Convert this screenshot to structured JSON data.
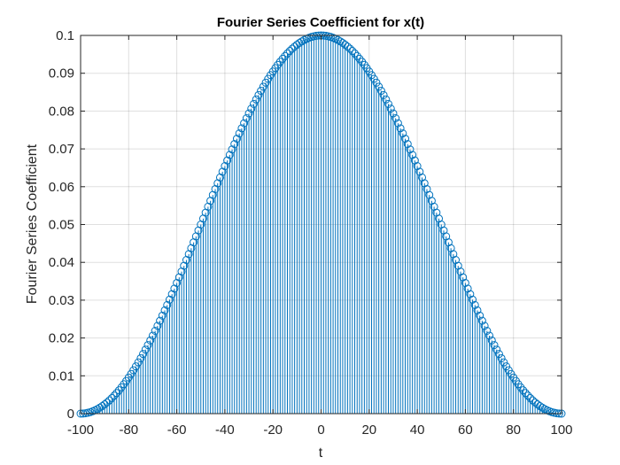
{
  "chart_data": {
    "type": "stem",
    "title": "Fourier Series Coefficient for x(t)",
    "xlabel": "t",
    "ylabel": "Fourier Series Coefficient",
    "xlim": [
      -100,
      100
    ],
    "ylim": [
      0,
      0.1
    ],
    "xticks": [
      "-100",
      "-80",
      "-60",
      "-40",
      "-20",
      "0",
      "20",
      "40",
      "60",
      "80",
      "100"
    ],
    "yticks": [
      "0",
      "0.01",
      "0.02",
      "0.03",
      "0.04",
      "0.05",
      "0.06",
      "0.07",
      "0.08",
      "0.09",
      "0.1"
    ],
    "grid": true,
    "color": "#0072BD",
    "x_range": [
      -100,
      100
    ],
    "x_step": 1,
    "shape": "y = 0.05 * (1 + cos(pi * x / 100))",
    "samples": [
      {
        "x": -100,
        "y": 0
      },
      {
        "x": -80,
        "y": 0.0095
      },
      {
        "x": -60,
        "y": 0.0345
      },
      {
        "x": -40,
        "y": 0.0655
      },
      {
        "x": -20,
        "y": 0.0905
      },
      {
        "x": 0,
        "y": 0.1
      },
      {
        "x": 20,
        "y": 0.0905
      },
      {
        "x": 40,
        "y": 0.0655
      },
      {
        "x": 60,
        "y": 0.0345
      },
      {
        "x": 80,
        "y": 0.0095
      },
      {
        "x": 100,
        "y": 0
      }
    ]
  }
}
